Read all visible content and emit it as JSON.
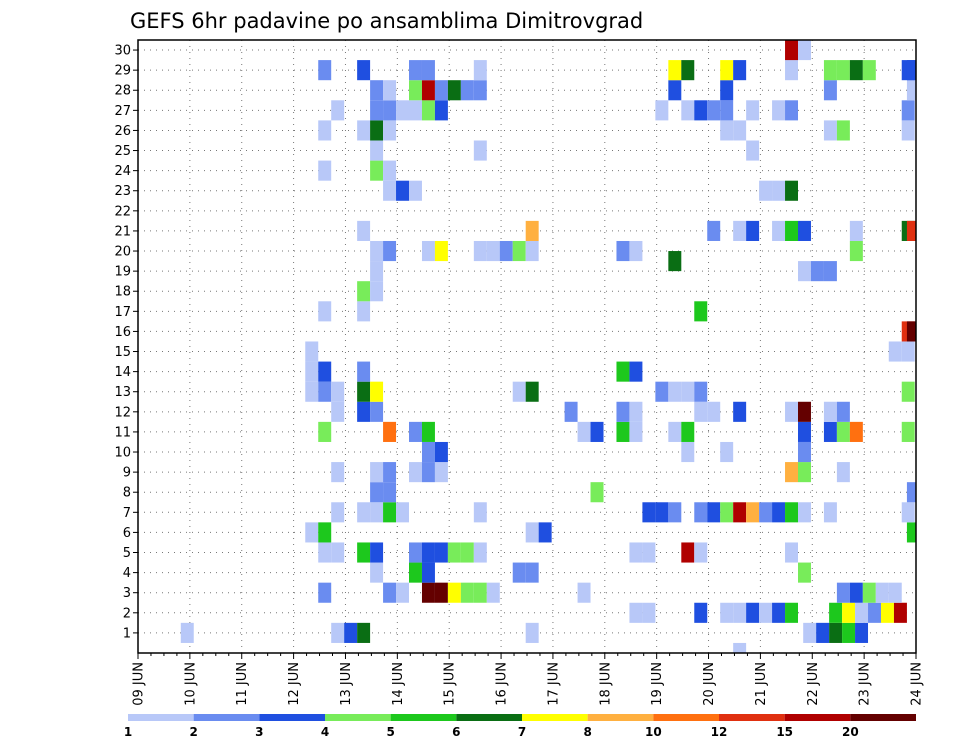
{
  "chart_data": {
    "type": "heatmap",
    "title": "GEFS 6hr padavine po ansamblima Dimitrovgrad",
    "x_tick_labels": [
      "09 JUN",
      "10 JUN",
      "11 JUN",
      "12 JUN",
      "13 JUN",
      "14 JUN",
      "15 JUN",
      "16 JUN",
      "17 JUN",
      "18 JUN",
      "19 JUN",
      "20 JUN",
      "21 JUN",
      "22 JUN",
      "23 JUN",
      "24 JUN"
    ],
    "x_range_days": [
      9,
      24
    ],
    "y_tick_labels": [
      "1",
      "2",
      "3",
      "4",
      "5",
      "6",
      "7",
      "8",
      "9",
      "10",
      "11",
      "12",
      "13",
      "14",
      "15",
      "16",
      "17",
      "18",
      "19",
      "20",
      "21",
      "22",
      "23",
      "24",
      "25",
      "26",
      "27",
      "28",
      "29",
      "30"
    ],
    "y_range": [
      0,
      30
    ],
    "grid": "dotted",
    "colorbar": {
      "labels": [
        "1",
        "2",
        "3",
        "4",
        "5",
        "6",
        "7",
        "8",
        "10",
        "12",
        "15",
        "20"
      ],
      "colors": [
        "#b8c8f8",
        "#6a8cf0",
        "#1f4fe0",
        "#78ec5a",
        "#1dc81d",
        "#0a6e14",
        "#ffff00",
        "#ffb040",
        "#ff7010",
        "#e03010",
        "#b00000",
        "#640000"
      ]
    },
    "cells": [
      [
        9.95,
        1,
        0
      ],
      [
        12.85,
        1,
        0
      ],
      [
        13.1,
        1,
        2
      ],
      [
        13.35,
        1,
        5
      ],
      [
        16.6,
        1,
        0
      ],
      [
        20.6,
        0,
        0
      ],
      [
        21.95,
        1,
        0
      ],
      [
        22.2,
        1,
        2
      ],
      [
        22.45,
        1,
        5
      ],
      [
        22.7,
        1,
        4
      ],
      [
        22.95,
        1,
        2
      ],
      [
        18.6,
        2,
        0
      ],
      [
        18.85,
        2,
        0
      ],
      [
        19.85,
        2,
        2
      ],
      [
        20.35,
        2,
        0
      ],
      [
        20.6,
        2,
        0
      ],
      [
        20.85,
        2,
        2
      ],
      [
        21.1,
        2,
        0
      ],
      [
        21.35,
        2,
        2
      ],
      [
        21.6,
        2,
        4
      ],
      [
        22.45,
        2,
        4
      ],
      [
        22.7,
        2,
        6
      ],
      [
        22.95,
        2,
        0
      ],
      [
        23.2,
        2,
        1
      ],
      [
        23.45,
        2,
        6
      ],
      [
        23.7,
        2,
        10
      ],
      [
        12.6,
        3,
        1
      ],
      [
        13.85,
        3,
        1
      ],
      [
        14.1,
        3,
        0
      ],
      [
        14.6,
        3,
        11
      ],
      [
        14.85,
        3,
        11
      ],
      [
        15.1,
        3,
        6
      ],
      [
        15.35,
        3,
        3
      ],
      [
        15.6,
        3,
        3
      ],
      [
        15.85,
        3,
        0
      ],
      [
        17.6,
        3,
        0
      ],
      [
        22.6,
        3,
        1
      ],
      [
        22.85,
        3,
        2
      ],
      [
        23.1,
        3,
        3
      ],
      [
        23.35,
        3,
        0
      ],
      [
        23.6,
        3,
        0
      ],
      [
        13.6,
        4,
        0
      ],
      [
        14.35,
        4,
        4
      ],
      [
        14.6,
        4,
        2
      ],
      [
        16.35,
        4,
        1
      ],
      [
        16.6,
        4,
        1
      ],
      [
        21.85,
        4,
        3
      ],
      [
        12.6,
        5,
        0
      ],
      [
        12.85,
        5,
        0
      ],
      [
        13.35,
        5,
        4
      ],
      [
        13.6,
        5,
        2
      ],
      [
        14.35,
        5,
        1
      ],
      [
        14.6,
        5,
        2
      ],
      [
        14.85,
        5,
        2
      ],
      [
        15.1,
        5,
        3
      ],
      [
        15.35,
        5,
        3
      ],
      [
        15.6,
        5,
        0
      ],
      [
        18.6,
        5,
        0
      ],
      [
        18.85,
        5,
        0
      ],
      [
        19.6,
        5,
        10
      ],
      [
        19.85,
        5,
        0
      ],
      [
        21.6,
        5,
        0
      ],
      [
        12.35,
        6,
        0
      ],
      [
        12.6,
        6,
        4
      ],
      [
        16.6,
        6,
        0
      ],
      [
        16.85,
        6,
        2
      ],
      [
        23.95,
        6,
        4
      ],
      [
        12.85,
        7,
        0
      ],
      [
        13.35,
        7,
        0
      ],
      [
        13.6,
        7,
        0
      ],
      [
        13.85,
        7,
        4
      ],
      [
        14.1,
        7,
        0
      ],
      [
        15.6,
        7,
        0
      ],
      [
        18.85,
        7,
        2
      ],
      [
        19.1,
        7,
        2
      ],
      [
        19.35,
        7,
        1
      ],
      [
        19.85,
        7,
        1
      ],
      [
        20.1,
        7,
        2
      ],
      [
        20.35,
        7,
        3
      ],
      [
        20.6,
        7,
        10
      ],
      [
        20.85,
        7,
        7
      ],
      [
        21.1,
        7,
        1
      ],
      [
        21.35,
        7,
        2
      ],
      [
        21.6,
        7,
        4
      ],
      [
        21.85,
        7,
        0
      ],
      [
        22.35,
        7,
        0
      ],
      [
        23.85,
        7,
        0
      ],
      [
        13.6,
        8,
        1
      ],
      [
        13.85,
        8,
        1
      ],
      [
        17.85,
        8,
        3
      ],
      [
        23.95,
        8,
        1
      ],
      [
        12.85,
        9,
        0
      ],
      [
        13.6,
        9,
        0
      ],
      [
        13.85,
        9,
        1
      ],
      [
        14.35,
        9,
        0
      ],
      [
        14.6,
        9,
        1
      ],
      [
        14.85,
        9,
        0
      ],
      [
        21.6,
        9,
        7
      ],
      [
        21.85,
        9,
        3
      ],
      [
        22.6,
        9,
        0
      ],
      [
        14.6,
        10,
        1
      ],
      [
        14.85,
        10,
        2
      ],
      [
        19.6,
        10,
        0
      ],
      [
        20.35,
        10,
        0
      ],
      [
        21.85,
        10,
        1
      ],
      [
        12.6,
        11,
        3
      ],
      [
        13.85,
        11,
        8
      ],
      [
        14.35,
        11,
        1
      ],
      [
        14.6,
        11,
        4
      ],
      [
        17.6,
        11,
        0
      ],
      [
        17.85,
        11,
        2
      ],
      [
        18.35,
        11,
        4
      ],
      [
        18.6,
        11,
        0
      ],
      [
        19.35,
        11,
        0
      ],
      [
        19.6,
        11,
        4
      ],
      [
        21.85,
        11,
        2
      ],
      [
        22.35,
        11,
        2
      ],
      [
        22.6,
        11,
        3
      ],
      [
        22.85,
        11,
        8
      ],
      [
        23.85,
        11,
        3
      ],
      [
        12.85,
        12,
        0
      ],
      [
        13.35,
        12,
        2
      ],
      [
        13.6,
        12,
        1
      ],
      [
        17.35,
        12,
        1
      ],
      [
        18.35,
        12,
        1
      ],
      [
        18.6,
        12,
        0
      ],
      [
        19.85,
        12,
        0
      ],
      [
        20.1,
        12,
        0
      ],
      [
        20.6,
        12,
        2
      ],
      [
        21.6,
        12,
        0
      ],
      [
        21.85,
        12,
        11
      ],
      [
        22.35,
        12,
        0
      ],
      [
        22.6,
        12,
        1
      ],
      [
        12.35,
        13,
        0
      ],
      [
        12.6,
        13,
        1
      ],
      [
        12.85,
        13,
        0
      ],
      [
        13.35,
        13,
        5
      ],
      [
        13.6,
        13,
        6
      ],
      [
        16.35,
        13,
        0
      ],
      [
        16.6,
        13,
        5
      ],
      [
        19.1,
        13,
        1
      ],
      [
        19.35,
        13,
        0
      ],
      [
        19.6,
        13,
        0
      ],
      [
        19.85,
        13,
        1
      ],
      [
        23.85,
        13,
        3
      ],
      [
        12.35,
        14,
        0
      ],
      [
        12.6,
        14,
        2
      ],
      [
        13.35,
        14,
        1
      ],
      [
        18.35,
        14,
        4
      ],
      [
        18.6,
        14,
        2
      ],
      [
        12.35,
        15,
        0
      ],
      [
        23.6,
        15,
        0
      ],
      [
        23.85,
        15,
        0
      ],
      [
        12.6,
        17,
        0
      ],
      [
        13.35,
        17,
        0
      ],
      [
        19.85,
        17,
        4
      ],
      [
        23.85,
        16,
        9
      ],
      [
        23.95,
        16,
        11
      ],
      [
        13.35,
        18,
        3
      ],
      [
        13.6,
        18,
        0
      ],
      [
        21.85,
        19,
        0
      ],
      [
        22.1,
        19,
        1
      ],
      [
        22.35,
        19,
        1
      ],
      [
        13.6,
        19,
        0
      ],
      [
        13.6,
        20,
        0
      ],
      [
        13.85,
        20,
        1
      ],
      [
        14.6,
        20,
        0
      ],
      [
        14.85,
        20,
        6
      ],
      [
        15.6,
        20,
        0
      ],
      [
        15.85,
        20,
        0
      ],
      [
        16.1,
        20,
        1
      ],
      [
        16.35,
        20,
        3
      ],
      [
        16.6,
        20,
        0
      ],
      [
        18.35,
        20,
        1
      ],
      [
        18.6,
        20,
        0
      ],
      [
        19.35,
        19.5,
        5
      ],
      [
        22.85,
        20,
        3
      ],
      [
        13.35,
        21,
        0
      ],
      [
        16.6,
        21,
        7
      ],
      [
        20.1,
        21,
        1
      ],
      [
        20.6,
        21,
        0
      ],
      [
        20.85,
        21,
        2
      ],
      [
        21.35,
        21,
        0
      ],
      [
        21.6,
        21,
        4
      ],
      [
        21.85,
        21,
        2
      ],
      [
        22.85,
        21,
        0
      ],
      [
        23.85,
        21,
        5
      ],
      [
        23.95,
        21,
        9
      ],
      [
        13.85,
        23,
        0
      ],
      [
        14.1,
        23,
        2
      ],
      [
        14.35,
        23,
        0
      ],
      [
        21.1,
        23,
        0
      ],
      [
        21.35,
        23,
        0
      ],
      [
        21.6,
        23,
        5
      ],
      [
        12.6,
        24,
        0
      ],
      [
        13.6,
        24,
        3
      ],
      [
        13.85,
        24,
        0
      ],
      [
        13.6,
        25,
        0
      ],
      [
        15.6,
        25,
        0
      ],
      [
        20.85,
        25,
        0
      ],
      [
        12.6,
        26,
        0
      ],
      [
        13.35,
        26,
        0
      ],
      [
        13.6,
        26,
        5
      ],
      [
        13.85,
        26,
        0
      ],
      [
        20.35,
        26,
        0
      ],
      [
        20.6,
        26,
        0
      ],
      [
        22.35,
        26,
        0
      ],
      [
        22.6,
        26,
        3
      ],
      [
        23.85,
        26,
        0
      ],
      [
        12.85,
        27,
        0
      ],
      [
        13.6,
        27,
        1
      ],
      [
        13.85,
        27,
        1
      ],
      [
        14.1,
        27,
        0
      ],
      [
        14.35,
        27,
        0
      ],
      [
        14.6,
        27,
        3
      ],
      [
        14.85,
        27,
        2
      ],
      [
        19.1,
        27,
        0
      ],
      [
        19.6,
        27,
        0
      ],
      [
        19.85,
        27,
        2
      ],
      [
        20.1,
        27,
        1
      ],
      [
        20.35,
        27,
        1
      ],
      [
        20.85,
        27,
        0
      ],
      [
        21.35,
        27,
        0
      ],
      [
        21.6,
        27,
        1
      ],
      [
        23.85,
        27,
        1
      ],
      [
        13.6,
        28,
        1
      ],
      [
        13.85,
        28,
        0
      ],
      [
        14.35,
        28,
        3
      ],
      [
        14.6,
        28,
        10
      ],
      [
        14.85,
        28,
        1
      ],
      [
        15.1,
        28,
        5
      ],
      [
        15.35,
        28,
        1
      ],
      [
        15.6,
        28,
        1
      ],
      [
        19.35,
        28,
        2
      ],
      [
        20.35,
        28,
        2
      ],
      [
        22.35,
        28,
        1
      ],
      [
        23.95,
        28,
        0
      ],
      [
        12.6,
        29,
        1
      ],
      [
        13.35,
        29,
        2
      ],
      [
        14.35,
        29,
        1
      ],
      [
        14.6,
        29,
        1
      ],
      [
        15.6,
        29,
        0
      ],
      [
        19.35,
        29,
        6
      ],
      [
        19.6,
        29,
        5
      ],
      [
        20.35,
        29,
        6
      ],
      [
        20.6,
        29,
        2
      ],
      [
        21.6,
        29,
        0
      ],
      [
        22.35,
        29,
        3
      ],
      [
        22.6,
        29,
        3
      ],
      [
        22.85,
        29,
        5
      ],
      [
        23.1,
        29,
        3
      ],
      [
        23.85,
        29,
        2
      ],
      [
        23.95,
        29,
        2
      ],
      [
        21.6,
        30,
        10
      ],
      [
        21.85,
        30,
        0
      ]
    ]
  }
}
